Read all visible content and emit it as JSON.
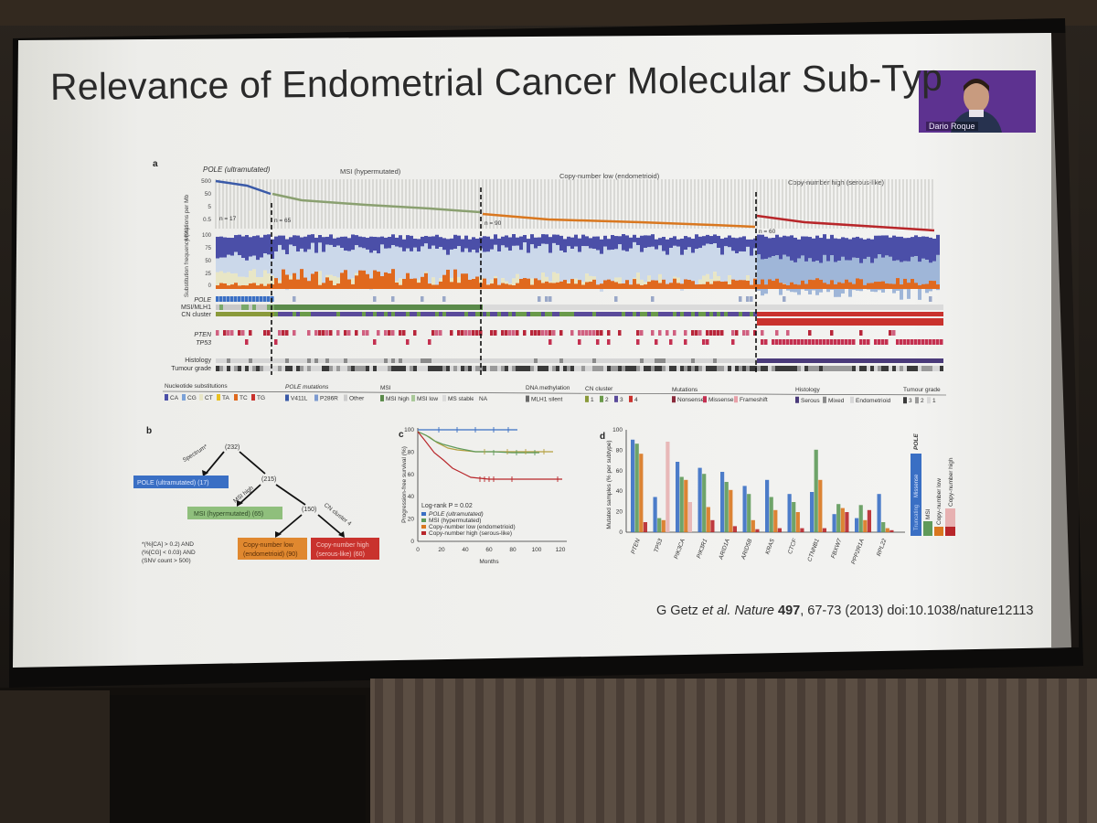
{
  "slide": {
    "title": "Relevance of Endometrial Cancer Molecular Sub-Typ",
    "citation": {
      "authors": "G Getz",
      "etal": "et al.",
      "journal": "Nature",
      "volume": "497",
      "rest": ", 67-73 (2013) doi:10.1038/nature12113"
    },
    "presenter_name": "Dario Roque"
  },
  "panel_a": {
    "label": "a",
    "subtypes": [
      "POLE (ultramutated)",
      "MSI (hypermutated)",
      "Copy-number low (endometrioid)",
      "Copy-number high (serous-like)"
    ],
    "counts": [
      "n = 17",
      "n = 65",
      "n = 90",
      "n = 60"
    ],
    "y_label_top": "Mutations per Mb",
    "y_ticks_top": [
      "500",
      "50",
      "5",
      "0.5"
    ],
    "y_label_sub": "Substitution frequency (%)",
    "y_ticks_sub": [
      "100",
      "75",
      "50",
      "25",
      "0"
    ],
    "track_labels": [
      "POLE",
      "MSI/MLH1",
      "CN cluster",
      "PTEN",
      "TP53",
      "Histology",
      "Tumour grade"
    ],
    "legend": {
      "nucleotide": {
        "title": "Nucleotide substitutions",
        "items": [
          "CA",
          "CG",
          "CT",
          "TA",
          "TC",
          "TG"
        ]
      },
      "pole": {
        "title": "POLE mutations",
        "items": [
          "V411L",
          "P286R",
          "Other"
        ]
      },
      "msi": {
        "title": "MSI",
        "items": [
          "MSI high",
          "MSI low",
          "MS stable",
          "NA"
        ]
      },
      "methylation": {
        "title": "DNA methylation",
        "items": [
          "MLH1 silent"
        ]
      },
      "cn": {
        "title": "CN cluster",
        "items": [
          "1",
          "2",
          "3",
          "4"
        ]
      },
      "mutations": {
        "title": "Mutations",
        "items": [
          "Nonsense",
          "Missense",
          "Frameshift"
        ]
      },
      "histology": {
        "title": "Histology",
        "items": [
          "Serous",
          "Mixed",
          "Endometrioid"
        ]
      },
      "grade": {
        "title": "Tumour grade",
        "items": [
          "3",
          "2",
          "1"
        ]
      }
    }
  },
  "panel_b": {
    "label": "b",
    "root": "(232)",
    "n215": "(215)",
    "n150": "(150)",
    "spectrum": "Spectrum*",
    "msi_high": "MSI high",
    "cn_cluster": "CN cluster 4",
    "pole_box": "POLE (ultramutated) (17)",
    "msi_box": "MSI (hypermutated) (65)",
    "cnlow_box": [
      "Copy-number low",
      "(endometrioid) (90)"
    ],
    "cnhigh_box": [
      "Copy-number high",
      "(serous-like) (60)"
    ],
    "footnote": [
      "*(%[CA] > 0.2) AND",
      "(%[CG] < 0.03) AND",
      "(SNV count > 500)"
    ]
  },
  "panel_c": {
    "label": "c",
    "ylabel": "Progression-free survival (%)",
    "xlabel": "Months",
    "yticks": [
      "100",
      "80",
      "60",
      "40",
      "20",
      "0"
    ],
    "xticks": [
      "0",
      "20",
      "40",
      "60",
      "80",
      "100",
      "120"
    ],
    "logrank": "Log-rank P = 0.02",
    "legend": [
      "POLE (ultramutated)",
      "MSI (hypermutated)",
      "Copy-number low (endometrioid)",
      "Copy-number high (serous-like)"
    ]
  },
  "panel_d": {
    "label": "d",
    "ylabel": "Mutated samples (% per subtype)",
    "yticks": [
      "100",
      "80",
      "60",
      "40",
      "20",
      "0"
    ],
    "genes": [
      "PTEN",
      "TP53",
      "PIK3CA",
      "PIK3R1",
      "ARID1A",
      "ARID5B",
      "KRAS",
      "CTCF",
      "CTNNB1",
      "FBXW7",
      "PPP2R1A",
      "RPL22"
    ],
    "legend": [
      "POLE",
      "MSI",
      "Copy-number low",
      "Copy-number high"
    ],
    "legend_sub": [
      "Truncating",
      "Missense"
    ]
  },
  "colors": {
    "slide_bg": "#eeeeea",
    "pole_blue": "#3a5aa8",
    "msi_green": "#5f9a5a",
    "cnlow_orange": "#d9771f",
    "cnhigh_red": "#b8262a"
  }
}
